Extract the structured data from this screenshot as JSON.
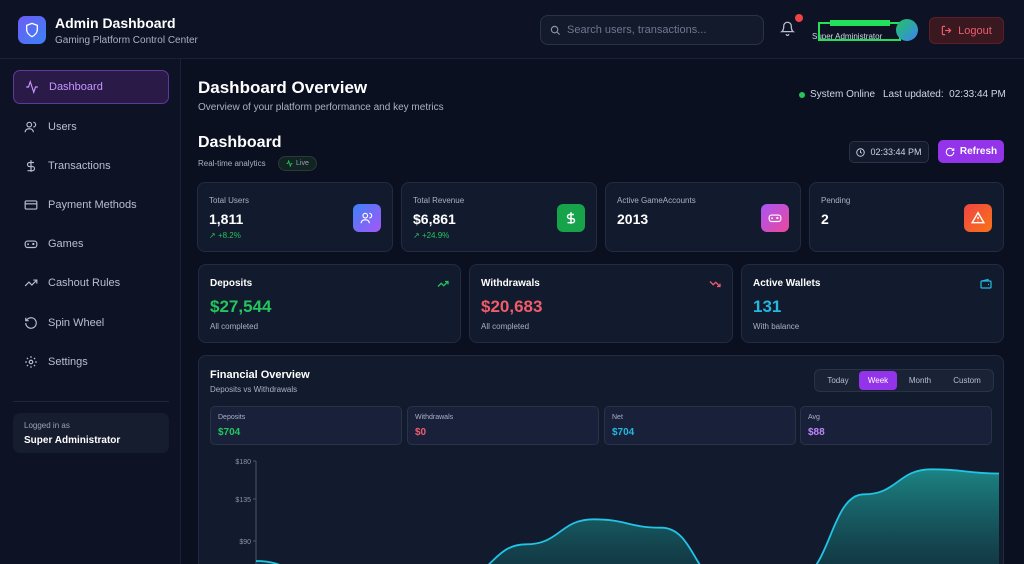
{
  "header": {
    "title": "Admin Dashboard",
    "subtitle": "Gaming Platform Control Center",
    "search_placeholder": "Search users, transactions...",
    "user_role": "Super Administrator",
    "logout_label": "Logout"
  },
  "sidebar": {
    "items": [
      {
        "label": "Dashboard",
        "icon": "activity-icon",
        "active": true
      },
      {
        "label": "Users",
        "icon": "users-icon",
        "active": false
      },
      {
        "label": "Transactions",
        "icon": "dollar-icon",
        "active": false
      },
      {
        "label": "Payment Methods",
        "icon": "credit-card-icon",
        "active": false
      },
      {
        "label": "Games",
        "icon": "gamepad-icon",
        "active": false
      },
      {
        "label": "Cashout Rules",
        "icon": "trending-up-icon",
        "active": false
      },
      {
        "label": "Spin Wheel",
        "icon": "rotate-icon",
        "active": false
      },
      {
        "label": "Settings",
        "icon": "gear-icon",
        "active": false
      }
    ],
    "logged_in_label": "Logged in as",
    "logged_in_user": "Super Administrator"
  },
  "overview": {
    "title": "Dashboard Overview",
    "subtitle": "Overview of your platform performance and key metrics",
    "system_status": "System Online",
    "last_updated_label": "Last updated:",
    "last_updated_time": "02:33:44 PM"
  },
  "dashboard": {
    "title": "Dashboard",
    "subtitle": "Real-time analytics",
    "live_label": "Live",
    "time": "02:33:44 PM",
    "refresh_label": "Refresh"
  },
  "stats": [
    {
      "label": "Total Users",
      "value": "1,811",
      "change": "+8.2%",
      "icon": "users-icon",
      "color": "#6d5cf6"
    },
    {
      "label": "Total Revenue",
      "value": "$6,861",
      "change": "+24.9%",
      "icon": "dollar-icon",
      "color": "#16a34a"
    },
    {
      "label": "Active GameAccounts",
      "value": "2013",
      "change": "",
      "icon": "gamepad-icon",
      "color": "#c026d3"
    },
    {
      "label": "Pending",
      "value": "2",
      "change": "",
      "icon": "alert-icon",
      "color": "#ea580c"
    }
  ],
  "wallets": [
    {
      "label": "Deposits",
      "value": "$27,544",
      "sub": "All completed",
      "color": "#22c55e",
      "icon": "trend-up-icon"
    },
    {
      "label": "Withdrawals",
      "value": "$20,683",
      "sub": "All completed",
      "color": "#f05c6c",
      "icon": "trend-down-icon"
    },
    {
      "label": "Active Wallets",
      "value": "131",
      "sub": "With balance",
      "color": "#22b8e0",
      "icon": "wallet-icon"
    }
  ],
  "financial": {
    "title": "Financial Overview",
    "subtitle": "Deposits vs Withdrawals",
    "tabs": [
      {
        "label": "Today",
        "active": false
      },
      {
        "label": "Week",
        "active": true
      },
      {
        "label": "Month",
        "active": false
      },
      {
        "label": "Custom",
        "active": false
      }
    ],
    "summary": [
      {
        "label": "Deposits",
        "value": "$704",
        "color": "#22c55e"
      },
      {
        "label": "Withdrawals",
        "value": "$0",
        "color": "#f05c6c"
      },
      {
        "label": "Net",
        "value": "$704",
        "color": "#22b8e0"
      },
      {
        "label": "Avg",
        "value": "$88",
        "color": "#c084fc"
      }
    ]
  },
  "chart_data": {
    "type": "area",
    "y_ticks": [
      "$180",
      "$135",
      "$90"
    ],
    "ylim": [
      0,
      180
    ],
    "series": [
      {
        "values": [
          60,
          40,
          25,
          40,
          80,
          110,
          100,
          30,
          40,
          140,
          170,
          165
        ]
      }
    ]
  }
}
